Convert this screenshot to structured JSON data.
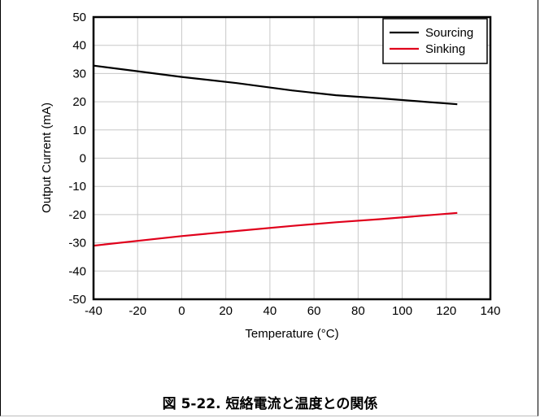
{
  "caption": "図 5-22. 短絡電流と温度との関係",
  "chart_data": {
    "type": "line",
    "xlabel": "Temperature (°C)",
    "ylabel": "Output Current (mA)",
    "xlim": [
      -40,
      140
    ],
    "ylim": [
      -50,
      50
    ],
    "xticks": [
      -40,
      -20,
      0,
      20,
      40,
      60,
      80,
      100,
      120,
      140
    ],
    "yticks": [
      -50,
      -40,
      -30,
      -20,
      -10,
      0,
      10,
      20,
      30,
      40,
      50
    ],
    "grid": true,
    "legend_position": "top-right",
    "series": [
      {
        "name": "Sourcing",
        "color": "#000000",
        "x": [
          -40,
          -20,
          0,
          25,
          50,
          70,
          90,
          110,
          125
        ],
        "y": [
          32.8,
          30.8,
          28.8,
          26.6,
          24.0,
          22.3,
          21.2,
          20.0,
          19.1
        ]
      },
      {
        "name": "Sinking",
        "color": "#e0001b",
        "x": [
          -40,
          0,
          25,
          50,
          70,
          90,
          125
        ],
        "y": [
          -31.0,
          -27.6,
          -25.8,
          -24.0,
          -22.7,
          -21.6,
          -19.4
        ]
      }
    ]
  }
}
